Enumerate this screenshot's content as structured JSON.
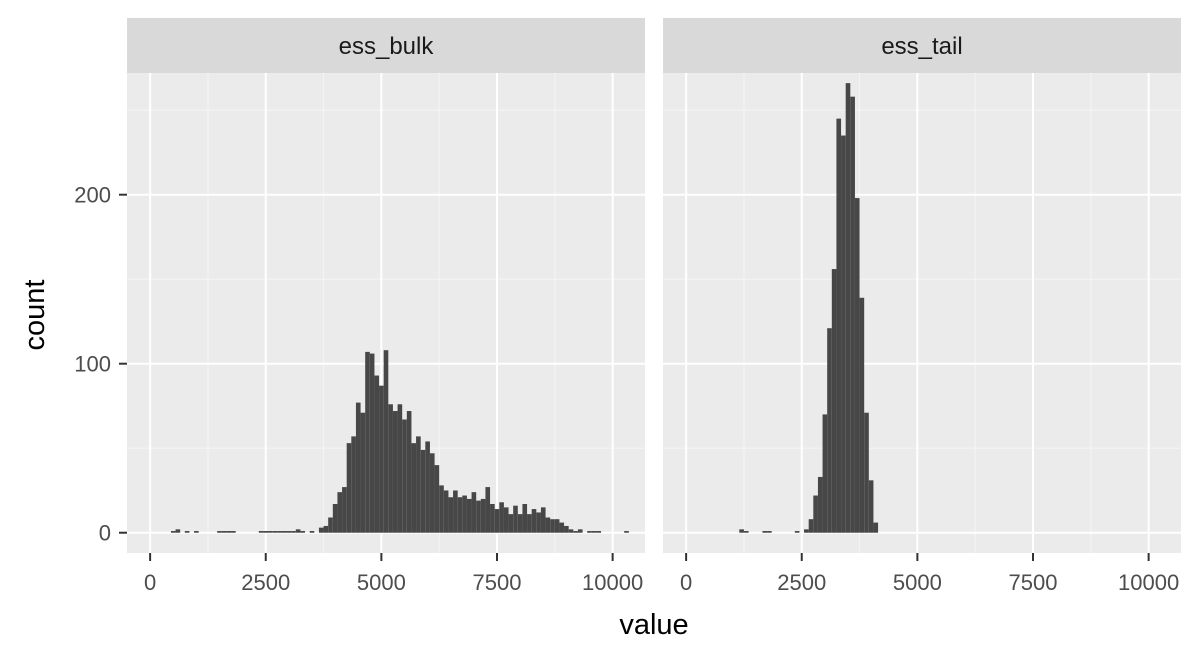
{
  "chart_data": {
    "type": "bar",
    "title": "",
    "xlabel": "value",
    "ylabel": "count",
    "xlim": [
      -500,
      10700
    ],
    "ylim": [
      -12,
      272
    ],
    "x_ticks": [
      0,
      2500,
      5000,
      7500,
      10000
    ],
    "x_tick_labels": [
      "0",
      "2500",
      "5000",
      "7500",
      "10000"
    ],
    "y_ticks": [
      0,
      100,
      200
    ],
    "y_tick_labels": [
      "0",
      "100",
      "200"
    ],
    "bin_width": 100,
    "facets": [
      {
        "label": "ess_bulk",
        "bin_centers": [
          500,
          600,
          800,
          1000,
          1500,
          1600,
          1700,
          1800,
          2400,
          2500,
          2600,
          2700,
          2800,
          2900,
          3000,
          3100,
          3200,
          3300,
          3500,
          3700,
          3800,
          3900,
          4000,
          4100,
          4200,
          4300,
          4400,
          4500,
          4600,
          4700,
          4800,
          4900,
          5000,
          5100,
          5200,
          5300,
          5400,
          5500,
          5600,
          5700,
          5800,
          5900,
          6000,
          6100,
          6200,
          6300,
          6400,
          6500,
          6600,
          6700,
          6800,
          6900,
          7000,
          7100,
          7200,
          7300,
          7400,
          7500,
          7600,
          7700,
          7800,
          7900,
          8000,
          8100,
          8200,
          8300,
          8400,
          8500,
          8600,
          8700,
          8800,
          8900,
          9000,
          9100,
          9200,
          9300,
          9500,
          9600,
          9700,
          10300
        ],
        "counts": [
          1,
          2,
          1,
          1,
          1,
          1,
          1,
          1,
          1,
          1,
          1,
          1,
          1,
          1,
          1,
          1,
          2,
          1,
          1,
          3,
          4,
          9,
          17,
          24,
          27,
          53,
          57,
          77,
          71,
          107,
          106,
          93,
          87,
          108,
          76,
          72,
          76,
          67,
          72,
          53,
          57,
          49,
          54,
          47,
          40,
          28,
          25,
          21,
          25,
          21,
          22,
          20,
          24,
          19,
          20,
          27,
          17,
          14,
          18,
          15,
          11,
          16,
          11,
          17,
          11,
          14,
          12,
          15,
          9,
          8,
          8,
          6,
          4,
          2,
          1,
          2,
          1,
          1,
          1,
          1
        ]
      },
      {
        "label": "ess_tail",
        "bin_centers": [
          1200,
          1300,
          1700,
          1800,
          2400,
          2600,
          2700,
          2800,
          2900,
          3000,
          3100,
          3200,
          3300,
          3400,
          3500,
          3600,
          3700,
          3800,
          3900,
          4000,
          4100
        ],
        "counts": [
          2,
          1,
          1,
          1,
          1,
          2,
          8,
          22,
          33,
          70,
          121,
          156,
          245,
          235,
          266,
          258,
          198,
          139,
          71,
          31,
          6
        ]
      }
    ]
  }
}
